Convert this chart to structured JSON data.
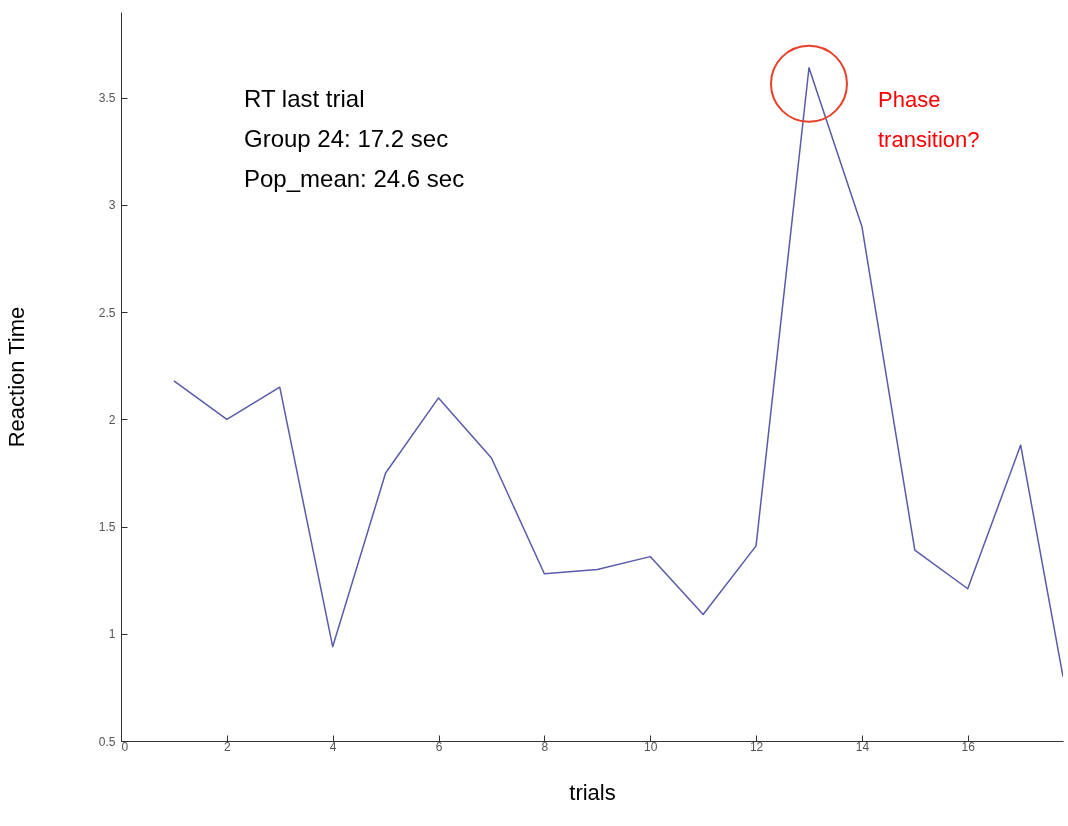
{
  "chart_data": {
    "type": "line",
    "xlabel": "trials",
    "ylabel": "Reaction Time",
    "x": [
      1,
      2,
      3,
      4,
      5,
      6,
      7,
      8,
      9,
      10,
      11,
      12,
      13,
      14,
      15,
      16,
      17,
      17.8
    ],
    "series": [
      {
        "color": "#5a5aaa",
        "values": [
          2.18,
          2.0,
          2.15,
          0.94,
          1.75,
          2.1,
          1.82,
          1.28,
          1.3,
          1.36,
          1.09,
          1.41,
          3.64,
          2.9,
          1.39,
          1.21,
          1.88,
          0.8
        ]
      }
    ],
    "xlim": [
      0,
      17.8
    ],
    "xticks": [
      0,
      2,
      4,
      6,
      8,
      10,
      12,
      14,
      16
    ],
    "ylim": [
      0.5,
      3.9
    ],
    "yticks": [
      0.5,
      1,
      1.5,
      2,
      2.5,
      3,
      3.5
    ],
    "grid": false,
    "marker": "none",
    "line_style": "solid",
    "annotations": [
      "RT last trial",
      "Group 24:      17.2 sec",
      "Pop_mean:      24.6 sec",
      "Phase transition?"
    ]
  }
}
